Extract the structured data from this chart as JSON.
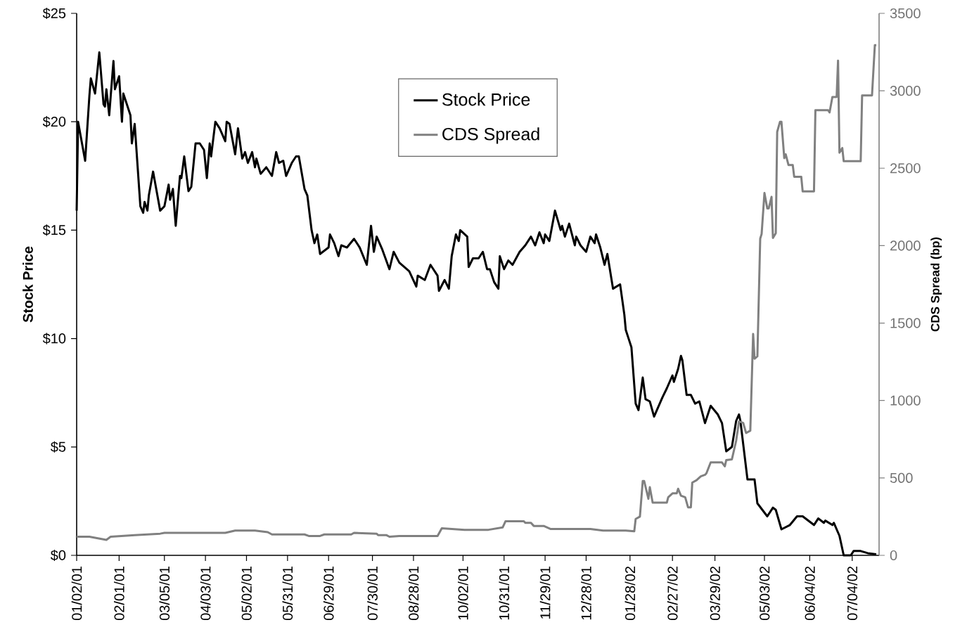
{
  "chart_data": {
    "type": "line",
    "ylabel": "Stock Price",
    "y2label": "CDS Spread (bp)",
    "xlim": [
      "2001-01-02",
      "2002-07-23"
    ],
    "xticks": [
      {
        "value": "2001-01-02",
        "label": "01/02/01"
      },
      {
        "value": "2001-02-01",
        "label": "02/01/01"
      },
      {
        "value": "2001-03-05",
        "label": "03/05/01"
      },
      {
        "value": "2001-04-03",
        "label": "04/03/01"
      },
      {
        "value": "2001-05-02",
        "label": "05/02/01"
      },
      {
        "value": "2001-05-31",
        "label": "05/31/01"
      },
      {
        "value": "2001-06-29",
        "label": "06/29/01"
      },
      {
        "value": "2001-07-30",
        "label": "07/30/01"
      },
      {
        "value": "2001-08-28",
        "label": "08/28/01"
      },
      {
        "value": "2001-10-02",
        "label": "10/02/01"
      },
      {
        "value": "2001-10-31",
        "label": "10/31/01"
      },
      {
        "value": "2001-11-29",
        "label": "11/29/01"
      },
      {
        "value": "2001-12-28",
        "label": "12/28/01"
      },
      {
        "value": "2002-01-28",
        "label": "01/28/02"
      },
      {
        "value": "2002-02-27",
        "label": "02/27/02"
      },
      {
        "value": "2002-03-29",
        "label": "03/29/02"
      },
      {
        "value": "2002-05-03",
        "label": "05/03/02"
      },
      {
        "value": "2002-06-04",
        "label": "06/04/02"
      },
      {
        "value": "2002-07-04",
        "label": "07/04/02"
      }
    ],
    "ylim": [
      0,
      25
    ],
    "yticks": [
      {
        "value": 0,
        "label": "$0"
      },
      {
        "value": 5,
        "label": "$5"
      },
      {
        "value": 10,
        "label": "$10"
      },
      {
        "value": 15,
        "label": "$15"
      },
      {
        "value": 20,
        "label": "$20"
      },
      {
        "value": 25,
        "label": "$25"
      }
    ],
    "y2lim": [
      0,
      3500
    ],
    "y2ticks": [
      0,
      500,
      1000,
      1500,
      2000,
      2500,
      3000,
      3500
    ],
    "legend": "top",
    "series": [
      {
        "name": "Stock Price",
        "color": "#000000",
        "x": [
          "2001-01-02",
          "2001-01-03",
          "2001-01-08",
          "2001-01-11",
          "2001-01-12",
          "2001-01-15",
          "2001-01-18",
          "2001-01-21",
          "2001-01-22",
          "2001-01-23",
          "2001-01-25",
          "2001-01-28",
          "2001-01-29",
          "2001-02-01",
          "2001-02-03",
          "2001-02-04",
          "2001-02-09",
          "2001-02-10",
          "2001-02-12",
          "2001-02-16",
          "2001-02-18",
          "2001-02-19",
          "2001-02-21",
          "2001-02-22",
          "2001-02-25",
          "2001-03-02",
          "2001-03-05",
          "2001-03-08",
          "2001-03-09",
          "2001-03-11",
          "2001-03-13",
          "2001-03-16",
          "2001-03-17",
          "2001-03-19",
          "2001-03-22",
          "2001-03-24",
          "2001-03-27",
          "2001-03-30",
          "2001-04-02",
          "2001-04-04",
          "2001-04-06",
          "2001-04-07",
          "2001-04-10",
          "2001-04-13",
          "2001-04-17",
          "2001-04-18",
          "2001-04-20",
          "2001-04-24",
          "2001-04-26",
          "2001-04-29",
          "2001-05-01",
          "2001-05-03",
          "2001-05-06",
          "2001-05-08",
          "2001-05-09",
          "2001-05-12",
          "2001-05-16",
          "2001-05-20",
          "2001-05-23",
          "2001-05-25",
          "2001-05-28",
          "2001-05-30",
          "2001-06-03",
          "2001-06-06",
          "2001-06-08",
          "2001-06-12",
          "2001-06-14",
          "2001-06-17",
          "2001-06-19",
          "2001-06-21",
          "2001-06-23",
          "2001-06-29",
          "2001-06-30",
          "2001-07-03",
          "2001-07-06",
          "2001-07-08",
          "2001-07-12",
          "2001-07-17",
          "2001-07-21",
          "2001-07-26",
          "2001-07-29",
          "2001-07-31",
          "2001-08-02",
          "2001-08-06",
          "2001-08-11",
          "2001-08-14",
          "2001-08-18",
          "2001-08-25",
          "2001-08-30",
          "2001-08-31",
          "2001-09-05",
          "2001-09-09",
          "2001-09-14",
          "2001-09-15",
          "2001-09-19",
          "2001-09-22",
          "2001-09-24",
          "2001-09-27",
          "2001-09-29",
          "2001-09-30",
          "2001-10-05",
          "2001-10-06",
          "2001-10-09",
          "2001-10-13",
          "2001-10-16",
          "2001-10-19",
          "2001-10-21",
          "2001-10-24",
          "2001-10-27",
          "2001-10-28",
          "2001-10-31",
          "2001-11-03",
          "2001-11-06",
          "2001-11-11",
          "2001-11-15",
          "2001-11-19",
          "2001-11-22",
          "2001-11-25",
          "2001-11-28",
          "2001-11-29",
          "2001-12-02",
          "2001-12-06",
          "2001-12-10",
          "2001-12-11",
          "2001-12-13",
          "2001-12-16",
          "2001-12-20",
          "2001-12-21",
          "2001-12-24",
          "2001-12-28",
          "2001-12-31",
          "2002-01-03",
          "2002-01-04",
          "2002-01-07",
          "2002-01-10",
          "2002-01-12",
          "2002-01-16",
          "2002-01-21",
          "2002-01-24",
          "2002-01-25",
          "2002-01-27",
          "2002-01-29",
          "2002-02-01",
          "2002-02-03",
          "2002-02-06",
          "2002-02-08",
          "2002-02-11",
          "2002-02-14",
          "2002-02-16",
          "2002-02-20",
          "2002-02-23",
          "2002-02-27",
          "2002-02-28",
          "2002-03-03",
          "2002-03-05",
          "2002-03-06",
          "2002-03-09",
          "2002-03-12",
          "2002-03-15",
          "2002-03-18",
          "2002-03-22",
          "2002-03-26",
          "2002-03-31",
          "2002-04-03",
          "2002-04-06",
          "2002-04-10",
          "2002-04-13",
          "2002-04-15",
          "2002-04-16",
          "2002-04-21",
          "2002-04-26",
          "2002-04-28",
          "2002-05-05",
          "2002-05-09",
          "2002-05-11",
          "2002-05-15",
          "2002-05-21",
          "2002-05-26",
          "2002-05-30",
          "2002-06-07",
          "2002-06-10",
          "2002-06-14",
          "2002-06-15",
          "2002-06-20",
          "2002-06-21",
          "2002-06-25",
          "2002-06-28",
          "2002-07-03",
          "2002-07-05",
          "2002-07-10",
          "2002-07-15",
          "2002-07-21"
        ],
        "values": [
          15.9,
          20.0,
          18.2,
          21.2,
          22.0,
          21.3,
          23.2,
          20.8,
          20.7,
          21.5,
          20.3,
          22.8,
          21.5,
          22.1,
          20.0,
          21.3,
          20.3,
          19.0,
          19.9,
          16.1,
          15.8,
          16.3,
          15.9,
          16.6,
          17.7,
          15.9,
          16.1,
          17.1,
          16.4,
          16.9,
          15.2,
          17.5,
          17.4,
          18.4,
          16.8,
          17.0,
          19.0,
          19.0,
          18.7,
          17.4,
          19.0,
          18.4,
          20.0,
          19.7,
          19.1,
          20.0,
          19.9,
          18.5,
          19.7,
          18.3,
          18.6,
          18.1,
          18.6,
          17.9,
          18.3,
          17.6,
          17.9,
          17.5,
          18.6,
          18.1,
          18.2,
          17.5,
          18.1,
          18.4,
          18.4,
          16.9,
          16.6,
          15.0,
          14.4,
          14.8,
          13.9,
          14.2,
          14.8,
          14.4,
          13.8,
          14.3,
          14.2,
          14.6,
          14.2,
          13.4,
          15.2,
          14.0,
          14.7,
          14.1,
          13.2,
          14.0,
          13.5,
          13.1,
          12.4,
          12.9,
          12.7,
          13.4,
          12.9,
          12.2,
          12.7,
          12.3,
          13.8,
          14.8,
          14.5,
          15.0,
          14.7,
          13.3,
          13.7,
          13.7,
          14.0,
          13.2,
          13.2,
          12.6,
          12.3,
          13.8,
          13.2,
          13.6,
          13.4,
          14.0,
          14.3,
          14.7,
          14.3,
          14.9,
          14.4,
          14.8,
          14.5,
          15.9,
          15.0,
          15.2,
          14.7,
          15.3,
          14.3,
          14.7,
          14.3,
          14.0,
          14.7,
          14.4,
          14.8,
          14.2,
          13.4,
          13.9,
          12.3,
          12.5,
          11.1,
          10.4,
          10.0,
          9.6,
          7.0,
          6.7,
          8.2,
          7.2,
          7.1,
          6.4,
          6.7,
          7.3,
          7.7,
          8.3,
          8.0,
          8.6,
          9.2,
          9.0,
          7.4,
          7.4,
          7.0,
          7.1,
          6.1,
          6.9,
          6.5,
          6.1,
          4.8,
          5.0,
          6.2,
          6.5,
          6.2,
          3.5,
          3.5,
          2.4,
          1.8,
          2.2,
          2.1,
          1.2,
          1.4,
          1.8,
          1.8,
          1.4,
          1.7,
          1.5,
          1.6,
          1.4,
          1.5,
          0.9,
          0.0,
          0.0,
          0.2,
          0.2,
          0.1,
          0.05
        ]
      },
      {
        "name": "CDS Spread",
        "color": "#808080",
        "axis": "y2",
        "x": [
          "2001-01-02",
          "2001-01-11",
          "2001-01-23",
          "2001-01-26",
          "2001-02-12",
          "2001-03-02",
          "2001-03-05",
          "2001-04-17",
          "2001-04-24",
          "2001-05-08",
          "2001-05-17",
          "2001-05-20",
          "2001-06-12",
          "2001-06-15",
          "2001-06-23",
          "2001-06-26",
          "2001-07-15",
          "2001-07-17",
          "2001-08-02",
          "2001-08-03",
          "2001-08-09",
          "2001-08-11",
          "2001-08-18",
          "2001-09-14",
          "2001-09-17",
          "2001-10-03",
          "2001-10-20",
          "2001-10-30",
          "2001-11-01",
          "2001-11-04",
          "2001-11-14",
          "2001-11-15",
          "2001-11-19",
          "2001-11-21",
          "2001-11-28",
          "2001-12-03",
          "2001-12-31",
          "2002-01-09",
          "2002-01-25",
          "2002-01-31",
          "2002-02-01",
          "2002-02-04",
          "2002-02-06",
          "2002-02-07",
          "2002-02-10",
          "2002-02-11",
          "2002-02-13",
          "2002-02-23",
          "2002-02-24",
          "2002-02-27",
          "2002-03-02",
          "2002-03-03",
          "2002-03-05",
          "2002-03-08",
          "2002-03-10",
          "2002-03-12",
          "2002-03-13",
          "2002-03-16",
          "2002-03-19",
          "2002-03-22",
          "2002-03-23",
          "2002-03-26",
          "2002-04-03",
          "2002-04-05",
          "2002-04-06",
          "2002-04-10",
          "2002-04-13",
          "2002-04-15",
          "2002-04-18",
          "2002-04-20",
          "2002-04-23",
          "2002-04-25",
          "2002-04-26",
          "2002-04-28",
          "2002-04-30",
          "2002-05-01",
          "2002-05-03",
          "2002-05-05",
          "2002-05-06",
          "2002-05-08",
          "2002-05-09",
          "2002-05-11",
          "2002-05-12",
          "2002-05-14",
          "2002-05-15",
          "2002-05-17",
          "2002-05-18",
          "2002-05-20",
          "2002-05-23",
          "2002-05-24",
          "2002-05-29",
          "2002-05-30",
          "2002-06-07",
          "2002-06-08",
          "2002-06-17",
          "2002-06-18",
          "2002-06-20",
          "2002-06-23",
          "2002-06-24",
          "2002-06-25",
          "2002-06-27",
          "2002-06-28",
          "2002-07-10",
          "2002-07-11",
          "2002-07-18",
          "2002-07-20",
          "2002-07-21"
        ],
        "values": [
          120,
          120,
          100,
          120,
          130,
          140,
          145,
          145,
          160,
          160,
          150,
          135,
          135,
          125,
          125,
          135,
          135,
          145,
          140,
          130,
          130,
          120,
          125,
          125,
          175,
          165,
          165,
          180,
          220,
          220,
          220,
          210,
          210,
          190,
          190,
          170,
          170,
          160,
          160,
          155,
          235,
          250,
          480,
          480,
          365,
          440,
          340,
          340,
          375,
          400,
          400,
          430,
          385,
          375,
          310,
          310,
          470,
          485,
          510,
          520,
          530,
          600,
          600,
          575,
          615,
          620,
          740,
          865,
          855,
          790,
          805,
          1430,
          1270,
          1285,
          2045,
          2075,
          2340,
          2240,
          2240,
          2315,
          2050,
          2080,
          2735,
          2800,
          2800,
          2565,
          2590,
          2520,
          2520,
          2445,
          2445,
          2350,
          2350,
          2875,
          2875,
          2860,
          2960,
          2960,
          3195,
          2600,
          2630,
          2545,
          2545,
          2970,
          2970,
          3295,
          3295
        ]
      }
    ]
  }
}
